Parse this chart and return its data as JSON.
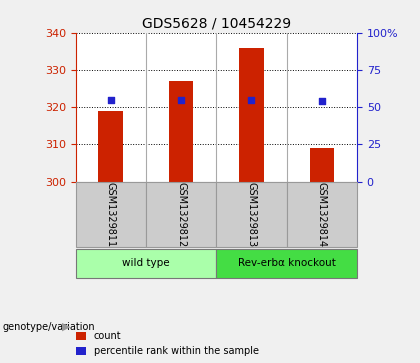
{
  "title": "GDS5628 / 10454229",
  "samples": [
    "GSM1329811",
    "GSM1329812",
    "GSM1329813",
    "GSM1329814"
  ],
  "count_values": [
    319,
    327,
    336,
    309
  ],
  "count_base": 300,
  "percentile_values": [
    55,
    55,
    55,
    54
  ],
  "ylim_left": [
    300,
    340
  ],
  "ylim_right": [
    0,
    100
  ],
  "yticks_left": [
    300,
    310,
    320,
    330,
    340
  ],
  "yticks_right": [
    0,
    25,
    50,
    75,
    100
  ],
  "yticklabels_right": [
    "0",
    "25",
    "50",
    "75",
    "100%"
  ],
  "bar_color": "#cc2200",
  "dot_color": "#2222cc",
  "axis_left_color": "#cc2200",
  "axis_right_color": "#2222cc",
  "groups": [
    {
      "label": "wild type",
      "samples": [
        0,
        1
      ],
      "color": "#aaffaa"
    },
    {
      "label": "Rev-erbα knockout",
      "samples": [
        2,
        3
      ],
      "color": "#44dd44"
    }
  ],
  "group_label": "genotype/variation",
  "legend_count": "count",
  "legend_percentile": "percentile rank within the sample",
  "bg_color": "#f0f0f0",
  "plot_bg": "#ffffff",
  "sample_box_color": "#cccccc"
}
